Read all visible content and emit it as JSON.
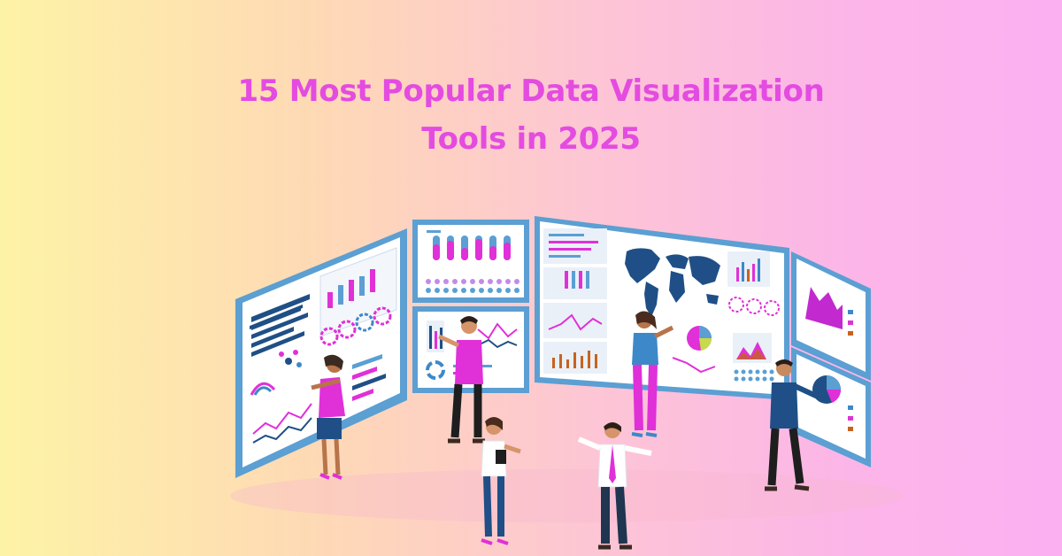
{
  "title": {
    "line1": "15 Most Popular Data Visualization",
    "line2": "Tools in 2025"
  },
  "colors": {
    "title": "#e44be0",
    "panel_frame": "#5b9fd3",
    "panel_fill": "#ffffff",
    "accent_magenta": "#e030d8",
    "accent_navy": "#1f4f86",
    "accent_blue": "#3d88c9"
  }
}
